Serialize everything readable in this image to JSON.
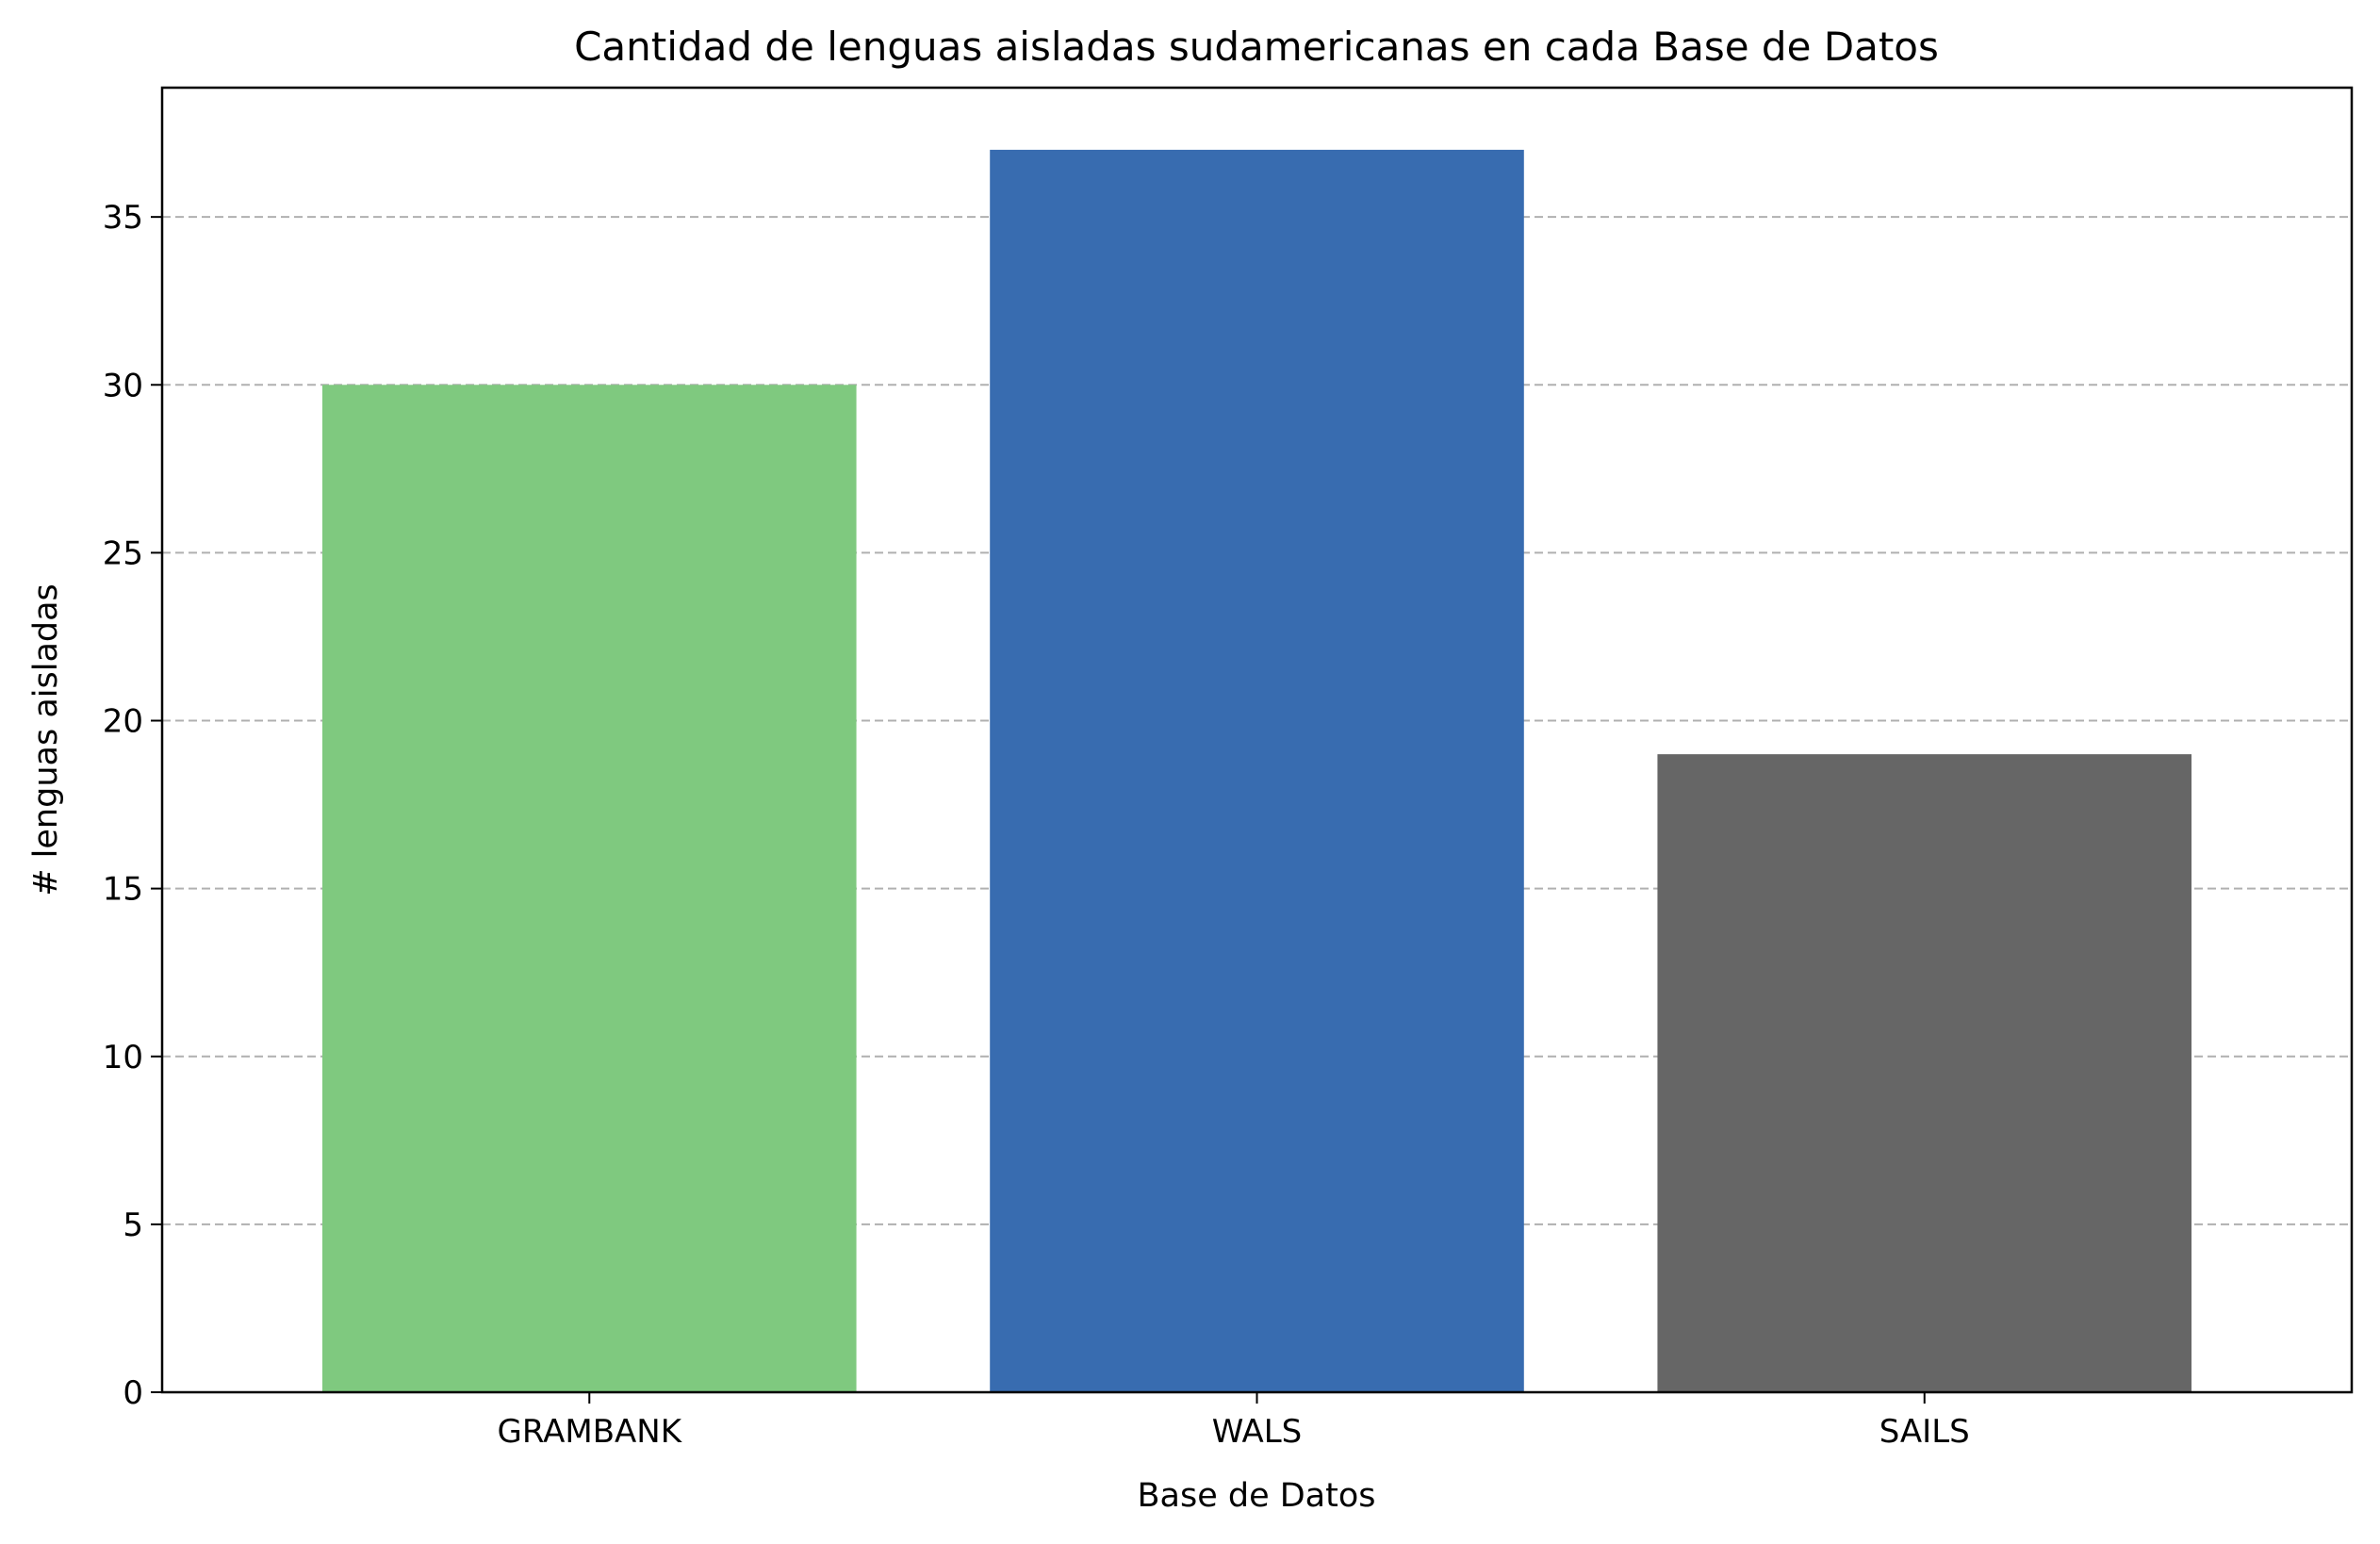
{
  "chart_data": {
    "type": "bar",
    "title": "Cantidad de lenguas aisladas sudamericanas en cada Base de Datos",
    "xlabel": "Base de Datos",
    "ylabel": "# lenguas aisladas",
    "categories": [
      "GRAMBANK",
      "WALS",
      "SAILS"
    ],
    "values": [
      30,
      37,
      19
    ],
    "colors": [
      "#7fc97f",
      "#386cb0",
      "#666666"
    ],
    "ylim": [
      0,
      38.85
    ],
    "yticks": [
      0,
      5,
      10,
      15,
      20,
      25,
      30,
      35
    ],
    "grid": "y-dashed",
    "grid_color": "#b0b0b0"
  }
}
